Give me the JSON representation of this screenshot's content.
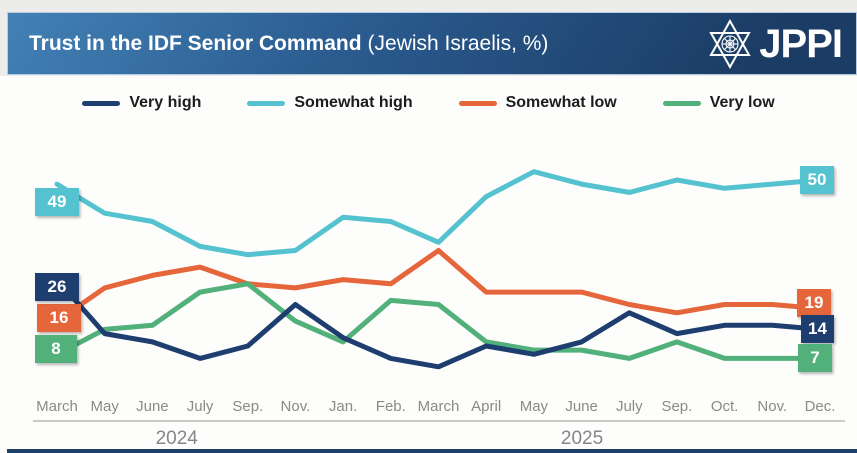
{
  "header": {
    "title_bold": "Trust in the IDF Senior Command",
    "title_regular": "(Jewish Israelis, %)",
    "logo_text": "JPPI"
  },
  "colors": {
    "banner_top": "#4281b6",
    "banner_bottom": "#1b3c64",
    "very_high": "#1d3e6f",
    "somewhat_high": "#54c2cf",
    "somewhat_low": "#e6663c",
    "very_low": "#52b07a",
    "axis_text": "#8a8a87"
  },
  "chart_data": {
    "type": "line",
    "title": "Trust in the IDF Senior Command (Jewish Israelis, %)",
    "categories": [
      "March",
      "May",
      "June",
      "July",
      "Sep.",
      "Nov.",
      "Jan.",
      "Feb.",
      "March",
      "April",
      "May",
      "June",
      "July",
      "Sep.",
      "Oct.",
      "Nov.",
      "Dec."
    ],
    "year_groups": [
      {
        "label": "2024",
        "from_index": 0,
        "to_index": 5
      },
      {
        "label": "2025",
        "from_index": 6,
        "to_index": 16
      }
    ],
    "series": [
      {
        "name": "Very high",
        "color": "#1d3e6f",
        "values": [
          26,
          13,
          11,
          7,
          10,
          20,
          12,
          7,
          5,
          10,
          8,
          11,
          18,
          13,
          15,
          15,
          14
        ],
        "start_label": "26",
        "end_label": "14"
      },
      {
        "name": "Somewhat high",
        "color": "#54c2cf",
        "values": [
          49,
          42,
          40,
          34,
          32,
          33,
          41,
          40,
          35,
          46,
          52,
          49,
          47,
          50,
          48,
          49,
          50
        ],
        "start_label": "49",
        "end_label": "50"
      },
      {
        "name": "Somewhat low",
        "color": "#e6663c",
        "values": [
          16,
          24,
          27,
          29,
          25,
          24,
          26,
          25,
          33,
          23,
          23,
          23,
          20,
          18,
          20,
          20,
          19
        ],
        "start_label": "16",
        "end_label": "19"
      },
      {
        "name": "Very low",
        "color": "#52b07a",
        "values": [
          8,
          14,
          15,
          23,
          25,
          16,
          11,
          21,
          20,
          11,
          9,
          9,
          7,
          11,
          7,
          7,
          7
        ],
        "start_label": "8",
        "end_label": "7"
      }
    ],
    "ylim": [
      0,
      55
    ],
    "grid": false,
    "legend_position": "top"
  }
}
